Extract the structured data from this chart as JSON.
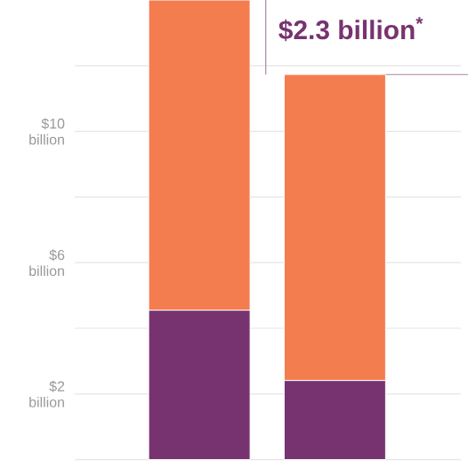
{
  "chart_data": {
    "type": "bar",
    "stacked": true,
    "categories": [
      null,
      null
    ],
    "series": [
      {
        "color": "#77336f",
        "values": [
          4.55,
          2.41
        ]
      },
      {
        "color": "#f47d50",
        "values": [
          9.45,
          9.32
        ]
      }
    ],
    "ylim": [
      0,
      14
    ],
    "yticks": [
      {
        "value": 0,
        "label": null
      },
      {
        "value": 2,
        "label": "$2 billion"
      },
      {
        "value": 4,
        "label": null
      },
      {
        "value": 6,
        "label": "$6 billion"
      },
      {
        "value": 8,
        "label": null
      },
      {
        "value": 10,
        "label": "$10 billion"
      },
      {
        "value": 12,
        "label": null
      }
    ],
    "grid": "y",
    "annotations": [
      "$2.3 billion$^{*}$"
    ]
  }
}
